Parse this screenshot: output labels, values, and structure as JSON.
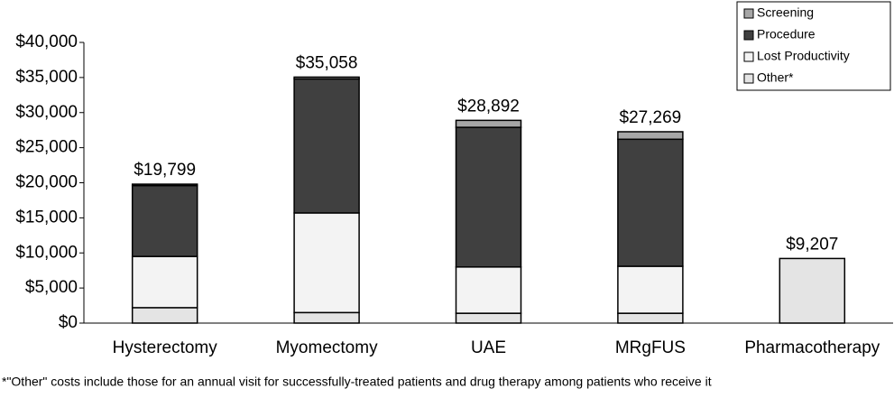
{
  "chart_data": {
    "type": "stacked-bar",
    "categories": [
      "Hysterectomy",
      "Myomectomy",
      "UAE",
      "MRgFUS",
      "Pharmacotherapy"
    ],
    "series": [
      {
        "name": "Other*",
        "color": "#e4e4e4",
        "values": [
          2200,
          1500,
          1400,
          1400,
          9207
        ]
      },
      {
        "name": "Lost Productivity",
        "color": "#f3f3f3",
        "values": [
          7300,
          14200,
          6600,
          6700,
          0
        ]
      },
      {
        "name": "Procedure",
        "color": "#404040",
        "values": [
          10100,
          19100,
          19900,
          18100,
          0
        ]
      },
      {
        "name": "Screening",
        "color": "#a6a6a6",
        "values": [
          199,
          258,
          992,
          1069,
          0
        ]
      }
    ],
    "totals": [
      19799,
      35058,
      28892,
      27269,
      9207
    ],
    "total_labels": [
      "$19,799",
      "$35,058",
      "$28,892",
      "$27,269",
      "$9,207"
    ],
    "ylim": [
      0,
      40000
    ],
    "yticks": [
      {
        "value": 0,
        "label": "$0"
      },
      {
        "value": 5000,
        "label": "$5,000"
      },
      {
        "value": 10000,
        "label": "$10,000"
      },
      {
        "value": 15000,
        "label": "$15,000"
      },
      {
        "value": 20000,
        "label": "$20,000"
      },
      {
        "value": 25000,
        "label": "$25,000"
      },
      {
        "value": 30000,
        "label": "$30,000"
      },
      {
        "value": 35000,
        "label": "$35,000"
      },
      {
        "value": 40000,
        "label": "$40,000"
      }
    ],
    "grid": false,
    "legend": "top-right",
    "footnote": "*\"Other\" costs include those for an annual visit for successfully-treated patients and drug therapy among patients who receive it"
  }
}
